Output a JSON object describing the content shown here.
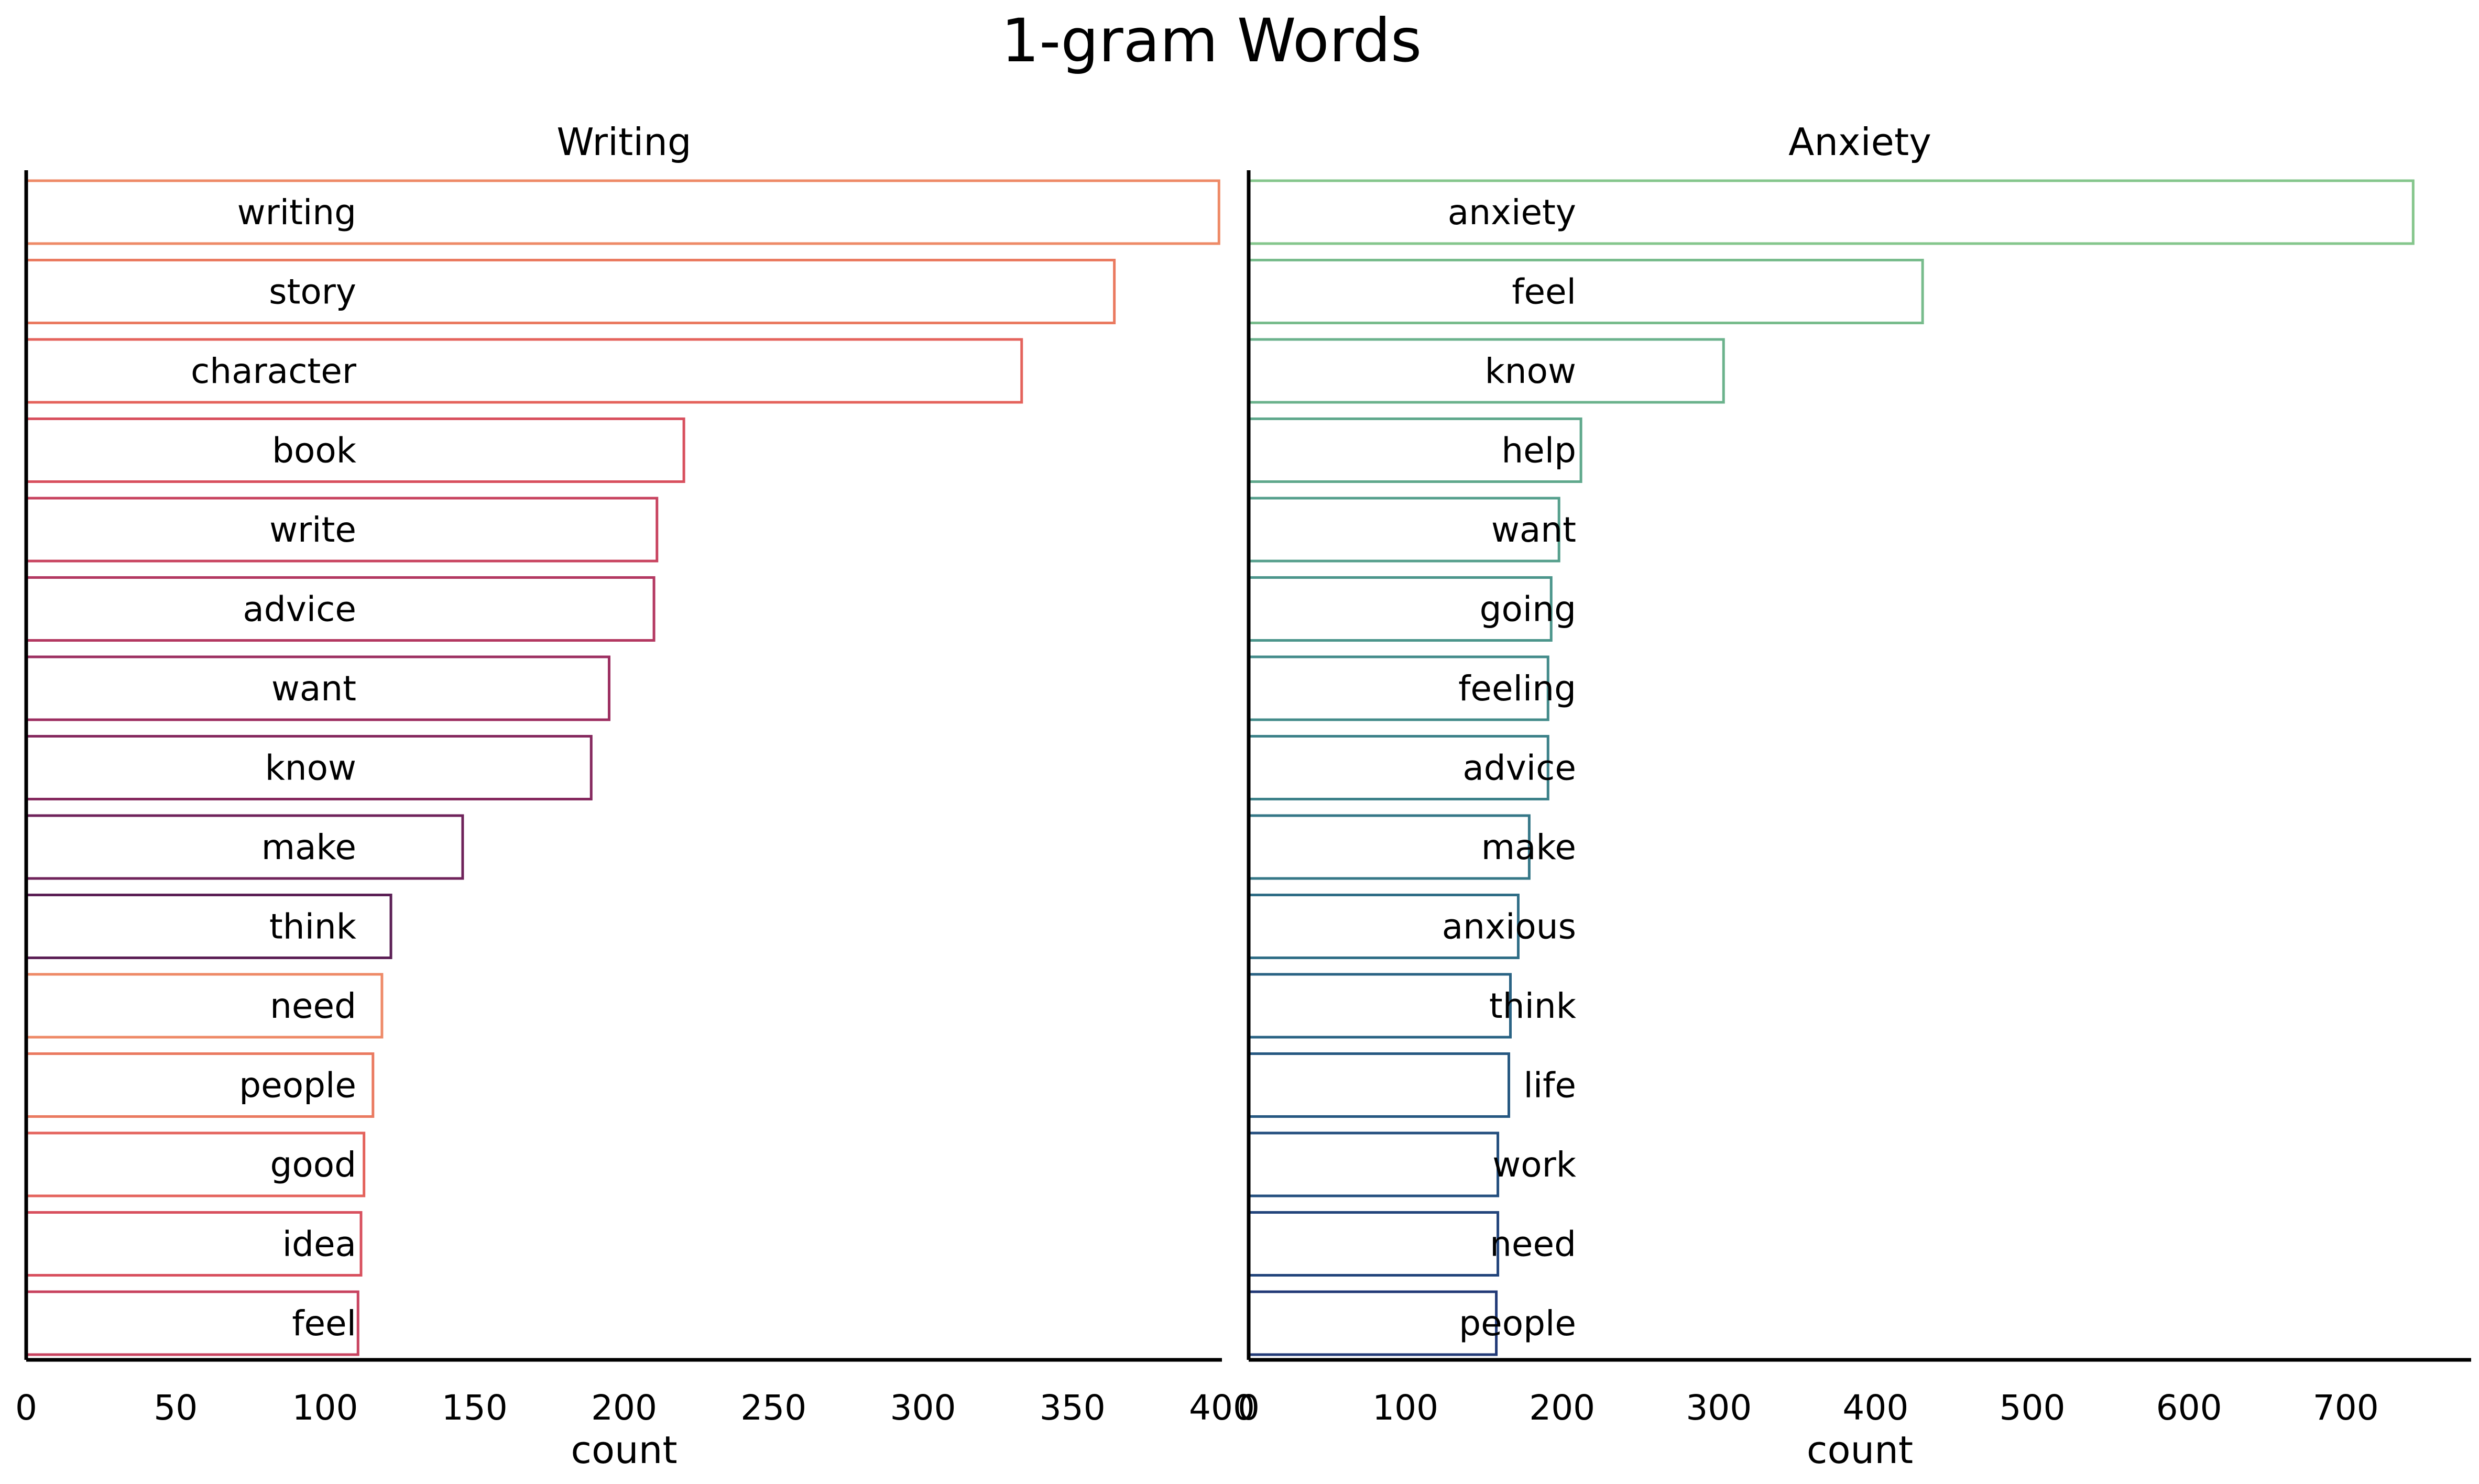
{
  "chart_data": {
    "type": "bar",
    "orientation": "horizontal",
    "title": "1-gram Words",
    "grid": false,
    "panels": [
      {
        "name": "writing",
        "title": "Writing",
        "xlabel": "count",
        "xlim": [
          0,
          400
        ],
        "xticks": [
          0,
          50,
          100,
          150,
          200,
          250,
          300,
          350,
          400
        ],
        "categories": [
          "writing",
          "story",
          "character",
          "book",
          "write",
          "advice",
          "want",
          "know",
          "make",
          "think",
          "need",
          "people",
          "good",
          "idea",
          "feel"
        ],
        "values": [
          399,
          364,
          333,
          220,
          211,
          210,
          195,
          189,
          146,
          122,
          119,
          116,
          113,
          112,
          111
        ],
        "colors": [
          "#EE8A67",
          "#EA7A60",
          "#E4635C",
          "#D8505E",
          "#C8435F",
          "#B33861",
          "#9C2E60",
          "#85285E",
          "#6F235B",
          "#5B1F55",
          "#EE8A67",
          "#EA7A60",
          "#E4635C",
          "#D8505E",
          "#C8435F"
        ]
      },
      {
        "name": "anxiety",
        "title": "Anxiety",
        "xlabel": "count",
        "xlim": [
          0,
          780
        ],
        "xticks": [
          0,
          100,
          200,
          300,
          400,
          500,
          600,
          700
        ],
        "categories": [
          "anxiety",
          "feel",
          "know",
          "help",
          "want",
          "going",
          "feeling",
          "advice",
          "make",
          "anxious",
          "think",
          "life",
          "work",
          "need",
          "people"
        ],
        "values": [
          743,
          430,
          303,
          212,
          198,
          193,
          191,
          191,
          179,
          172,
          167,
          166,
          159,
          159,
          158
        ],
        "colors": [
          "#85C68C",
          "#78BC8C",
          "#6BB28C",
          "#5FA88C",
          "#559F8C",
          "#4B958B",
          "#438B8A",
          "#3C8189",
          "#357787",
          "#2F6D86",
          "#2A6384",
          "#265881",
          "#234E7E",
          "#22447B",
          "#223A77"
        ]
      }
    ]
  }
}
